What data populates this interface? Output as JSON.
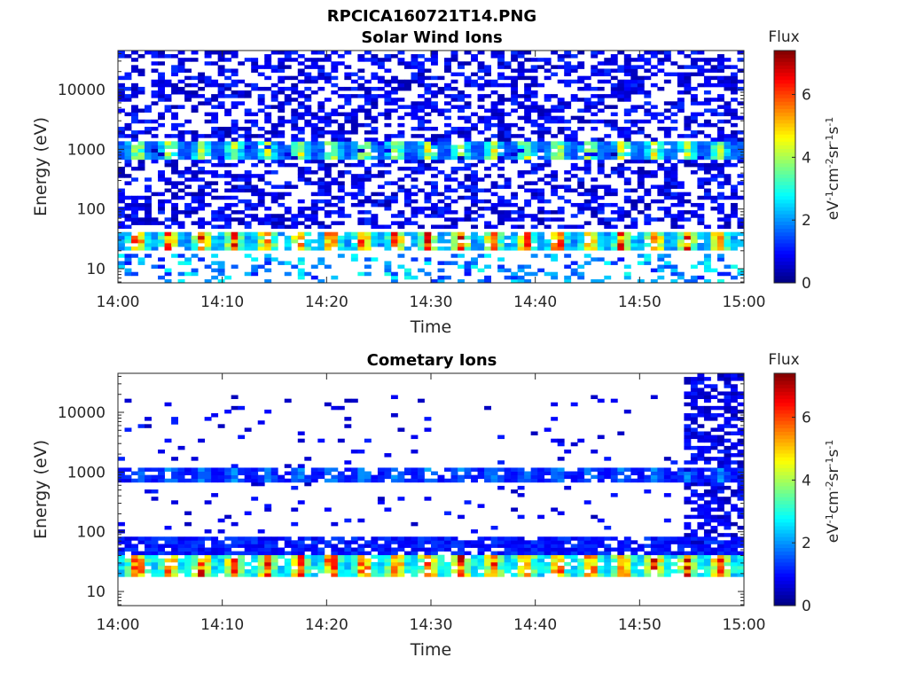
{
  "figure_title": "RPCICA160721T14.PNG",
  "colors": {
    "colormap": [
      "#00007F",
      "#0000FF",
      "#007FFF",
      "#00FFFF",
      "#7FFF7F",
      "#FFFF00",
      "#FF7F00",
      "#FF0000",
      "#7F0000"
    ],
    "axis": "#262626",
    "background": "#ffffff"
  },
  "chart_data": [
    {
      "type": "heatmap",
      "title": "Solar Wind Ions",
      "xlabel": "Time",
      "ylabel": "Energy (eV)",
      "x_ticks": [
        "14:00",
        "14:10",
        "14:20",
        "14:30",
        "14:40",
        "14:50",
        "15:00"
      ],
      "xlim": [
        "14:00",
        "15:00"
      ],
      "y_scale": "log",
      "y_ticks": [
        "10",
        "100",
        "1000",
        "10000"
      ],
      "ylim": [
        5.8,
        45000
      ],
      "colorbar": {
        "title": "Flux",
        "label": "eV-1cm-2sr-1s-1",
        "ticks": [
          "0",
          "2",
          "4",
          "6"
        ],
        "range": [
          0,
          7.4
        ]
      },
      "bands": [
        {
          "energy_range_eV": [
            20,
            40
          ],
          "pattern": "periodic ~3 min",
          "peak_flux": 6.5,
          "typical_flux": 4
        },
        {
          "energy_range_eV": [
            700,
            1400
          ],
          "pattern": "periodic ~3 min",
          "peak_flux": 4.5,
          "typical_flux": 3
        },
        {
          "energy_range_eV": [
            50,
            45000
          ],
          "pattern": "sparse background",
          "typical_flux": 1
        },
        {
          "energy_range_eV": [
            6,
            18
          ],
          "pattern": "sparse",
          "typical_flux": 2.5
        }
      ]
    },
    {
      "type": "heatmap",
      "title": "Cometary Ions",
      "xlabel": "Time",
      "ylabel": "Energy (eV)",
      "x_ticks": [
        "14:00",
        "14:10",
        "14:20",
        "14:30",
        "14:40",
        "14:50",
        "15:00"
      ],
      "xlim": [
        "14:00",
        "15:00"
      ],
      "y_scale": "log",
      "y_ticks": [
        "10",
        "100",
        "1000",
        "10000"
      ],
      "ylim": [
        5.8,
        45000
      ],
      "colorbar": {
        "title": "Flux",
        "label": "eV-1cm-2sr-1s-1",
        "ticks": [
          "0",
          "2",
          "4",
          "6"
        ],
        "range": [
          0,
          7.4
        ]
      },
      "bands": [
        {
          "energy_range_eV": [
            18,
            40
          ],
          "pattern": "periodic ~3 min",
          "peak_flux": 6.5,
          "typical_flux": 5
        },
        {
          "energy_range_eV": [
            700,
            1200
          ],
          "pattern": "periodic ~3 min",
          "typical_flux": 2
        },
        {
          "energy_range_eV": [
            40,
            80
          ],
          "pattern": "continuous",
          "typical_flux": 1.2
        },
        {
          "energy_range_eV": [
            60,
            45000
          ],
          "pattern": "dense background after 14:54",
          "typical_flux": 1
        },
        {
          "energy_range_eV": [
            100,
            20000
          ],
          "pattern": "sparse",
          "typical_flux": 1
        }
      ]
    }
  ]
}
